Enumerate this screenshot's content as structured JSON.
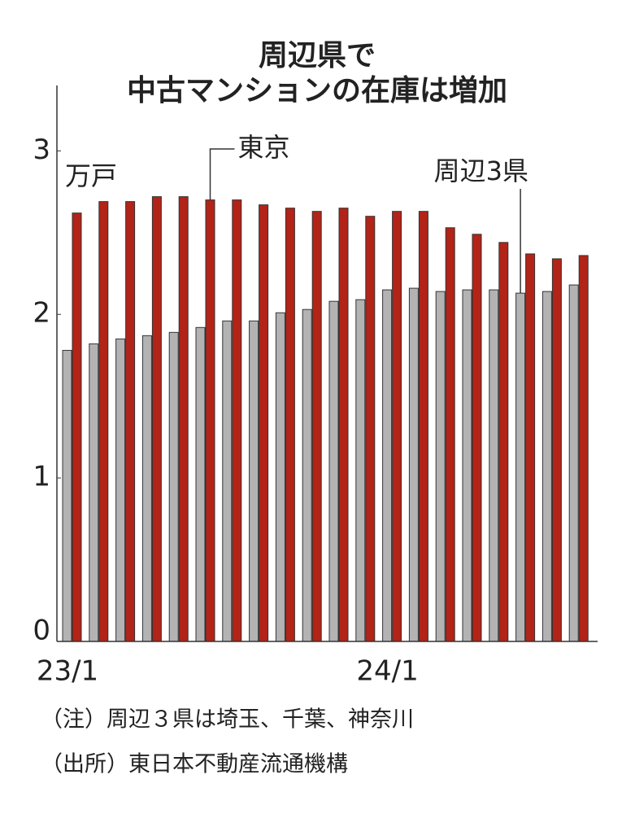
{
  "chart_data": {
    "type": "bar",
    "title_lines": [
      "周辺県で",
      "中古マンションの在庫は増加"
    ],
    "unit": "万戸",
    "categories": [
      "23/1",
      null,
      null,
      null,
      null,
      null,
      null,
      null,
      null,
      null,
      null,
      null,
      "24/1",
      null,
      null,
      null,
      null,
      null,
      null,
      null
    ],
    "series": [
      {
        "name": "周辺3県",
        "color": "#b3b3b3",
        "values": [
          1.78,
          1.82,
          1.85,
          1.87,
          1.89,
          1.92,
          1.96,
          1.96,
          2.01,
          2.03,
          2.08,
          2.09,
          2.15,
          2.16,
          2.14,
          2.15,
          2.15,
          2.13,
          2.14,
          2.18
        ]
      },
      {
        "name": "東京",
        "color": "#b22318",
        "values": [
          2.62,
          2.69,
          2.69,
          2.72,
          2.72,
          2.7,
          2.7,
          2.67,
          2.65,
          2.63,
          2.65,
          2.6,
          2.63,
          2.63,
          2.53,
          2.49,
          2.44,
          2.37,
          2.34,
          2.36
        ]
      }
    ],
    "ylim": [
      0,
      3.4
    ],
    "yticks": [
      0,
      1,
      2,
      3
    ],
    "notes": [
      "（注）周辺３県は埼玉、千葉、神奈川",
      "（出所）東日本不動産流通機構"
    ]
  }
}
